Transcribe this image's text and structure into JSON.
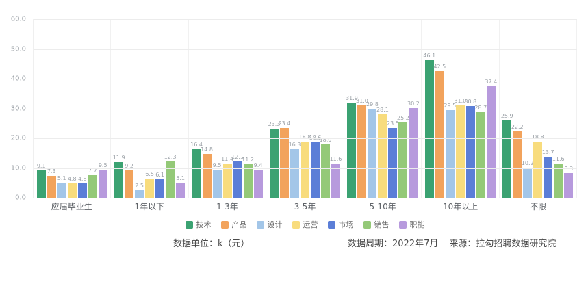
{
  "chart_data": {
    "type": "bar",
    "title": "",
    "categories": [
      "应届毕业生",
      "1年以下",
      "1-3年",
      "3-5年",
      "5-10年",
      "10年以上",
      "不限"
    ],
    "series": [
      {
        "name": "技术",
        "color": "#3ba272",
        "values": [
          9.1,
          11.9,
          16.4,
          23.3,
          31.9,
          46.1,
          25.9
        ]
      },
      {
        "name": "产品",
        "color": "#f2a35c",
        "values": [
          7.3,
          9.2,
          14.8,
          23.4,
          31.0,
          42.5,
          22.2
        ]
      },
      {
        "name": "设计",
        "color": "#a3c6e8",
        "values": [
          5.1,
          2.5,
          9.5,
          16.3,
          29.8,
          29.5,
          10.2
        ]
      },
      {
        "name": "运营",
        "color": "#f8dc7d",
        "values": [
          4.8,
          6.5,
          11.4,
          18.8,
          28.1,
          31.0,
          18.8
        ]
      },
      {
        "name": "市场",
        "color": "#5b7ed7",
        "values": [
          4.8,
          6.1,
          12.1,
          18.6,
          23.5,
          30.8,
          13.7
        ]
      },
      {
        "name": "销售",
        "color": "#94c978",
        "values": [
          7.7,
          12.3,
          11.2,
          18.0,
          25.2,
          28.7,
          11.6
        ]
      },
      {
        "name": "职能",
        "color": "#b79add",
        "values": [
          9.5,
          5.1,
          9.4,
          11.6,
          30.2,
          37.4,
          8.3
        ]
      }
    ],
    "ylim": [
      0,
      60
    ],
    "yticks": [
      "60.0",
      "50.0",
      "40.0",
      "30.0",
      "20.0",
      "10.0",
      "0.0"
    ],
    "xlabel": "",
    "ylabel": "",
    "grid": true,
    "legend_position": "bottom",
    "value_labels": true
  },
  "footer": {
    "unit_label": "数据单位：k（元）",
    "period_label": "数据周期：2022年7月",
    "source_label": "来源：拉勾招聘数据研究院"
  }
}
